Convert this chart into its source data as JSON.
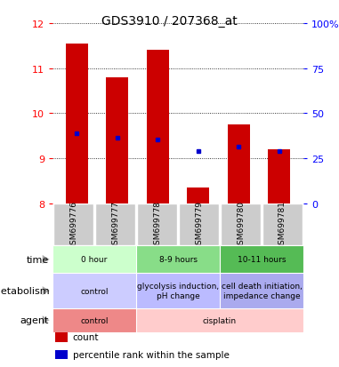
{
  "title": "GDS3910 / 207368_at",
  "samples": [
    "GSM699776",
    "GSM699777",
    "GSM699778",
    "GSM699779",
    "GSM699780",
    "GSM699781"
  ],
  "bar_tops": [
    11.55,
    10.8,
    11.4,
    8.35,
    9.75,
    9.2
  ],
  "bar_bottom": 8.0,
  "percentile_values": [
    9.55,
    9.45,
    9.42,
    9.15,
    9.25,
    9.15
  ],
  "ylim_left": [
    8,
    12
  ],
  "yticks_left": [
    8,
    9,
    10,
    11,
    12
  ],
  "ylim_right": [
    0,
    100
  ],
  "yticks_right": [
    0,
    25,
    50,
    75,
    100
  ],
  "ytick_labels_right": [
    "0",
    "25",
    "50",
    "75",
    "100%"
  ],
  "bar_color": "#cc0000",
  "percentile_color": "#0000cc",
  "plot_bg": "#ffffff",
  "grid_color": "#000000",
  "sample_bg": "#cccccc",
  "time_groups": [
    {
      "label": "0 hour",
      "cols": [
        0,
        1
      ],
      "color": "#ccffcc"
    },
    {
      "label": "8-9 hours",
      "cols": [
        2,
        3
      ],
      "color": "#88dd88"
    },
    {
      "label": "10-11 hours",
      "cols": [
        4,
        5
      ],
      "color": "#55bb55"
    }
  ],
  "metabolism_groups": [
    {
      "label": "control",
      "cols": [
        0,
        1
      ],
      "color": "#ccccff"
    },
    {
      "label": "glycolysis induction,\npH change",
      "cols": [
        2,
        3
      ],
      "color": "#bbbbff"
    },
    {
      "label": "cell death initiation,\nimpedance change",
      "cols": [
        4,
        5
      ],
      "color": "#aaaaee"
    }
  ],
  "agent_groups": [
    {
      "label": "control",
      "cols": [
        0,
        1
      ],
      "color": "#ee8888"
    },
    {
      "label": "cisplatin",
      "cols": [
        2,
        3,
        4,
        5
      ],
      "color": "#ffcccc"
    }
  ],
  "row_labels": [
    "time",
    "metabolism",
    "agent"
  ],
  "legend_items": [
    {
      "color": "#cc0000",
      "marker": "s",
      "label": "count"
    },
    {
      "color": "#0000cc",
      "marker": "s",
      "label": "percentile rank within the sample"
    }
  ]
}
